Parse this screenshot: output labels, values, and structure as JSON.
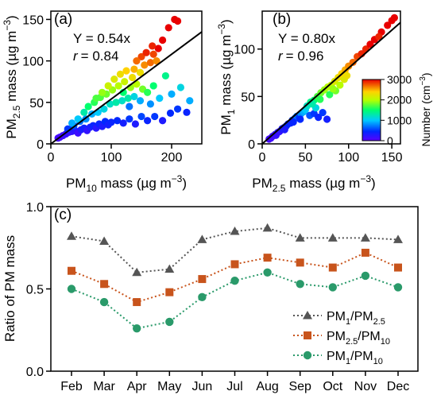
{
  "chart_data": [
    {
      "panel_label": "(a)",
      "type": "scatter",
      "xlabel": {
        "base": "PM",
        "sub": "10",
        "rest": " mass (µg m",
        "sup": "−3",
        "end": ")"
      },
      "ylabel": {
        "base": "PM",
        "sub": "2.5",
        "rest": " mass (µg m",
        "sup": "−3",
        "end": ")"
      },
      "xlim": [
        0,
        250
      ],
      "ylim": [
        0,
        160
      ],
      "xticks": [
        0,
        100,
        200
      ],
      "yticks": [
        0,
        50,
        100,
        150
      ],
      "fit_equation": "Y = 0.54x",
      "fit_slope": 0.54,
      "r_label": "r",
      "r_value": "= 0.84",
      "color_variable": "Number concentration",
      "points": [
        {
          "x": 30,
          "y": 14,
          "n": 200
        },
        {
          "x": 35,
          "y": 15,
          "n": 200
        },
        {
          "x": 40,
          "y": 16,
          "n": 250
        },
        {
          "x": 45,
          "y": 13,
          "n": 150
        },
        {
          "x": 50,
          "y": 17,
          "n": 300
        },
        {
          "x": 55,
          "y": 19,
          "n": 350
        },
        {
          "x": 60,
          "y": 16,
          "n": 200
        },
        {
          "x": 65,
          "y": 20,
          "n": 300
        },
        {
          "x": 70,
          "y": 22,
          "n": 400
        },
        {
          "x": 75,
          "y": 19,
          "n": 250
        },
        {
          "x": 80,
          "y": 24,
          "n": 400
        },
        {
          "x": 85,
          "y": 21,
          "n": 300
        },
        {
          "x": 90,
          "y": 27,
          "n": 450
        },
        {
          "x": 95,
          "y": 23,
          "n": 350
        },
        {
          "x": 100,
          "y": 26,
          "n": 400
        },
        {
          "x": 110,
          "y": 28,
          "n": 450
        },
        {
          "x": 120,
          "y": 25,
          "n": 350
        },
        {
          "x": 130,
          "y": 30,
          "n": 500
        },
        {
          "x": 140,
          "y": 24,
          "n": 300
        },
        {
          "x": 150,
          "y": 33,
          "n": 550
        },
        {
          "x": 160,
          "y": 28,
          "n": 400
        },
        {
          "x": 172,
          "y": 33,
          "n": 500
        },
        {
          "x": 185,
          "y": 28,
          "n": 300
        },
        {
          "x": 198,
          "y": 37,
          "n": 450
        },
        {
          "x": 210,
          "y": 42,
          "n": 500
        },
        {
          "x": 225,
          "y": 38,
          "n": 400
        },
        {
          "x": 20,
          "y": 10,
          "n": 150
        },
        {
          "x": 25,
          "y": 12,
          "n": 180
        },
        {
          "x": 15,
          "y": 8,
          "n": 120
        },
        {
          "x": 12,
          "y": 7,
          "n": 100
        },
        {
          "x": 38,
          "y": 22,
          "n": 600
        },
        {
          "x": 48,
          "y": 27,
          "n": 700
        },
        {
          "x": 58,
          "y": 30,
          "n": 800
        },
        {
          "x": 68,
          "y": 36,
          "n": 900
        },
        {
          "x": 78,
          "y": 38,
          "n": 1000
        },
        {
          "x": 88,
          "y": 42,
          "n": 1100
        },
        {
          "x": 98,
          "y": 48,
          "n": 1200
        },
        {
          "x": 108,
          "y": 50,
          "n": 1300
        },
        {
          "x": 118,
          "y": 52,
          "n": 1200
        },
        {
          "x": 128,
          "y": 55,
          "n": 1300
        },
        {
          "x": 138,
          "y": 57,
          "n": 1100
        },
        {
          "x": 148,
          "y": 52,
          "n": 900
        },
        {
          "x": 165,
          "y": 48,
          "n": 800
        },
        {
          "x": 180,
          "y": 55,
          "n": 1000
        },
        {
          "x": 200,
          "y": 60,
          "n": 900
        },
        {
          "x": 130,
          "y": 45,
          "n": 700
        },
        {
          "x": 55,
          "y": 38,
          "n": 1300
        },
        {
          "x": 62,
          "y": 45,
          "n": 1500
        },
        {
          "x": 72,
          "y": 50,
          "n": 1600
        },
        {
          "x": 82,
          "y": 56,
          "n": 1700
        },
        {
          "x": 92,
          "y": 60,
          "n": 1800
        },
        {
          "x": 102,
          "y": 65,
          "n": 1900
        },
        {
          "x": 112,
          "y": 70,
          "n": 2000
        },
        {
          "x": 122,
          "y": 75,
          "n": 2100
        },
        {
          "x": 132,
          "y": 68,
          "n": 1900
        },
        {
          "x": 142,
          "y": 72,
          "n": 2000
        },
        {
          "x": 152,
          "y": 66,
          "n": 1800
        },
        {
          "x": 160,
          "y": 62,
          "n": 1600
        },
        {
          "x": 170,
          "y": 70,
          "n": 1500
        },
        {
          "x": 105,
          "y": 78,
          "n": 2200
        },
        {
          "x": 115,
          "y": 84,
          "n": 2300
        },
        {
          "x": 125,
          "y": 88,
          "n": 2400
        },
        {
          "x": 138,
          "y": 90,
          "n": 2500
        },
        {
          "x": 148,
          "y": 86,
          "n": 2300
        },
        {
          "x": 155,
          "y": 95,
          "n": 2600
        },
        {
          "x": 165,
          "y": 98,
          "n": 2700
        },
        {
          "x": 150,
          "y": 105,
          "n": 2800
        },
        {
          "x": 158,
          "y": 110,
          "n": 2900
        },
        {
          "x": 170,
          "y": 108,
          "n": 2800
        },
        {
          "x": 178,
          "y": 115,
          "n": 3000
        },
        {
          "x": 168,
          "y": 118,
          "n": 2900
        },
        {
          "x": 185,
          "y": 125,
          "n": 3000
        },
        {
          "x": 195,
          "y": 140,
          "n": 3000
        },
        {
          "x": 205,
          "y": 150,
          "n": 3000
        },
        {
          "x": 210,
          "y": 148,
          "n": 3000
        },
        {
          "x": 175,
          "y": 100,
          "n": 2600
        },
        {
          "x": 142,
          "y": 100,
          "n": 2700
        },
        {
          "x": 135,
          "y": 80,
          "n": 2300
        },
        {
          "x": 95,
          "y": 70,
          "n": 2100
        },
        {
          "x": 85,
          "y": 62,
          "n": 1900
        },
        {
          "x": 75,
          "y": 55,
          "n": 1700
        },
        {
          "x": 45,
          "y": 30,
          "n": 1000
        },
        {
          "x": 35,
          "y": 25,
          "n": 900
        },
        {
          "x": 28,
          "y": 18,
          "n": 500
        },
        {
          "x": 190,
          "y": 82,
          "n": 1400
        },
        {
          "x": 215,
          "y": 68,
          "n": 1100
        },
        {
          "x": 230,
          "y": 52,
          "n": 900
        },
        {
          "x": 120,
          "y": 62,
          "n": 1500
        }
      ]
    },
    {
      "panel_label": "(b)",
      "type": "scatter",
      "xlabel": {
        "base": "PM",
        "sub": "2.5",
        "rest": " mass (µg m",
        "sup": "−3",
        "end": ")"
      },
      "ylabel": {
        "base": "PM",
        "sub": "1",
        "rest": " mass (µg m",
        "sup": "−3",
        "end": ")"
      },
      "xlim": [
        0,
        160
      ],
      "ylim": [
        0,
        140
      ],
      "xticks": [
        0,
        50,
        100,
        150
      ],
      "yticks": [
        0,
        50,
        100
      ],
      "fit_equation": "Y = 0.80x",
      "fit_slope": 0.8,
      "r_label": "r",
      "r_value": "= 0.96",
      "colorbar": {
        "label": "Number (cm",
        "sup": "−3",
        "end": ")",
        "min": 0,
        "max": 3000,
        "ticks": [
          0,
          1000,
          2000,
          3000
        ]
      },
      "points": [
        {
          "x": 8,
          "y": 5,
          "n": 100
        },
        {
          "x": 12,
          "y": 8,
          "n": 150
        },
        {
          "x": 15,
          "y": 10,
          "n": 200
        },
        {
          "x": 18,
          "y": 12,
          "n": 250
        },
        {
          "x": 20,
          "y": 13,
          "n": 200
        },
        {
          "x": 23,
          "y": 16,
          "n": 300
        },
        {
          "x": 25,
          "y": 17,
          "n": 350
        },
        {
          "x": 28,
          "y": 19,
          "n": 400
        },
        {
          "x": 30,
          "y": 21,
          "n": 450
        },
        {
          "x": 33,
          "y": 22,
          "n": 400
        },
        {
          "x": 35,
          "y": 25,
          "n": 500
        },
        {
          "x": 38,
          "y": 27,
          "n": 600
        },
        {
          "x": 40,
          "y": 29,
          "n": 700
        },
        {
          "x": 43,
          "y": 28,
          "n": 500
        },
        {
          "x": 45,
          "y": 32,
          "n": 800
        },
        {
          "x": 48,
          "y": 34,
          "n": 900
        },
        {
          "x": 50,
          "y": 36,
          "n": 1000
        },
        {
          "x": 55,
          "y": 30,
          "n": 600
        },
        {
          "x": 60,
          "y": 32,
          "n": 500
        },
        {
          "x": 65,
          "y": 28,
          "n": 400
        },
        {
          "x": 70,
          "y": 33,
          "n": 500
        },
        {
          "x": 75,
          "y": 26,
          "n": 350
        },
        {
          "x": 52,
          "y": 40,
          "n": 1200
        },
        {
          "x": 56,
          "y": 44,
          "n": 1400
        },
        {
          "x": 60,
          "y": 46,
          "n": 1500
        },
        {
          "x": 64,
          "y": 50,
          "n": 1700
        },
        {
          "x": 68,
          "y": 54,
          "n": 1800
        },
        {
          "x": 72,
          "y": 57,
          "n": 1900
        },
        {
          "x": 76,
          "y": 60,
          "n": 2000
        },
        {
          "x": 80,
          "y": 62,
          "n": 2100
        },
        {
          "x": 84,
          "y": 66,
          "n": 2200
        },
        {
          "x": 88,
          "y": 70,
          "n": 2300
        },
        {
          "x": 92,
          "y": 74,
          "n": 2400
        },
        {
          "x": 96,
          "y": 78,
          "n": 2500
        },
        {
          "x": 100,
          "y": 82,
          "n": 2600
        },
        {
          "x": 105,
          "y": 86,
          "n": 2700
        },
        {
          "x": 110,
          "y": 92,
          "n": 2800
        },
        {
          "x": 115,
          "y": 95,
          "n": 2900
        },
        {
          "x": 120,
          "y": 100,
          "n": 2900
        },
        {
          "x": 125,
          "y": 105,
          "n": 3000
        },
        {
          "x": 130,
          "y": 110,
          "n": 3000
        },
        {
          "x": 138,
          "y": 118,
          "n": 3000
        },
        {
          "x": 145,
          "y": 125,
          "n": 3000
        },
        {
          "x": 150,
          "y": 130,
          "n": 3000
        },
        {
          "x": 153,
          "y": 133,
          "n": 3000
        },
        {
          "x": 135,
          "y": 113,
          "n": 2900
        },
        {
          "x": 85,
          "y": 56,
          "n": 1800
        },
        {
          "x": 78,
          "y": 52,
          "n": 1600
        },
        {
          "x": 90,
          "y": 62,
          "n": 2000
        },
        {
          "x": 95,
          "y": 68,
          "n": 2200
        },
        {
          "x": 62,
          "y": 38,
          "n": 1100
        },
        {
          "x": 44,
          "y": 26,
          "n": 450
        },
        {
          "x": 36,
          "y": 23,
          "n": 420
        },
        {
          "x": 26,
          "y": 15,
          "n": 300
        },
        {
          "x": 16,
          "y": 9,
          "n": 180
        },
        {
          "x": 10,
          "y": 6,
          "n": 120
        },
        {
          "x": 58,
          "y": 42,
          "n": 1300
        },
        {
          "x": 67,
          "y": 47,
          "n": 1600
        },
        {
          "x": 82,
          "y": 58,
          "n": 1900
        },
        {
          "x": 98,
          "y": 72,
          "n": 2300
        }
      ]
    },
    {
      "panel_label": "(c)",
      "type": "line",
      "ylabel": "Ratio of PM mass",
      "ylim": [
        0,
        1
      ],
      "yticks": [
        "0.0",
        "0.5",
        "1.0"
      ],
      "categories": [
        "Feb",
        "Mar",
        "Apr",
        "May",
        "Jun",
        "Jul",
        "Aug",
        "Sep",
        "Oct",
        "Nov",
        "Dec"
      ],
      "series": [
        {
          "name": {
            "base": "PM",
            "sub1": "1",
            "mid": "/PM",
            "sub2": "2.5"
          },
          "marker": "triangle",
          "color": "#555555",
          "values": [
            0.82,
            0.79,
            0.6,
            0.62,
            0.8,
            0.85,
            0.87,
            0.81,
            0.81,
            0.81,
            0.8
          ]
        },
        {
          "name": {
            "base": "PM",
            "sub1": "2.5",
            "mid": "/PM",
            "sub2": "10"
          },
          "marker": "square",
          "color": "#c8541c",
          "values": [
            0.61,
            0.53,
            0.42,
            0.48,
            0.56,
            0.65,
            0.69,
            0.66,
            0.63,
            0.72,
            0.63
          ]
        },
        {
          "name": {
            "base": "PM",
            "sub1": "1",
            "mid": "/PM",
            "sub2": "10"
          },
          "marker": "circle",
          "color": "#2a9a6a",
          "values": [
            0.5,
            0.42,
            0.26,
            0.3,
            0.45,
            0.55,
            0.6,
            0.53,
            0.51,
            0.58,
            0.51
          ]
        }
      ]
    }
  ]
}
